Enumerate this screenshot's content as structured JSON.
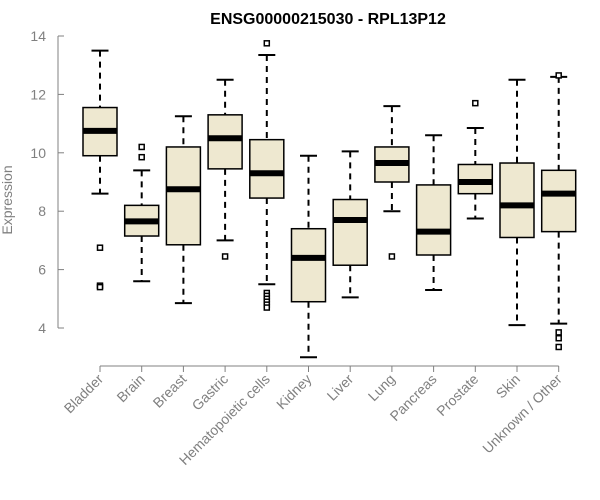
{
  "chart_data": {
    "type": "boxplot",
    "title": "ENSG00000215030 - RPL13P12",
    "xlabel": "",
    "ylabel": "Expression",
    "ylim": [
      3,
      14.2
    ],
    "yticks": [
      4,
      6,
      8,
      10,
      12,
      14
    ],
    "grid": false,
    "colors": {
      "box_fill": "#eee8d0",
      "stroke": "#000000",
      "axis": "#808080"
    },
    "categories": [
      "Bladder",
      "Brain",
      "Breast",
      "Gastric",
      "Hematopoietic cells",
      "Kidney",
      "Liver",
      "Lung",
      "Pancreas",
      "Prostate",
      "Skin",
      "Unknown / Other"
    ],
    "boxes": [
      {
        "category": "Bladder",
        "whisker_low": 8.6,
        "q1": 9.9,
        "median": 10.75,
        "q3": 11.55,
        "whisker_high": 13.5,
        "outliers": [
          6.75,
          5.45,
          5.4
        ]
      },
      {
        "category": "Brain",
        "whisker_low": 5.6,
        "q1": 7.15,
        "median": 7.65,
        "q3": 8.2,
        "whisker_high": 9.4,
        "outliers": [
          10.2,
          9.85
        ]
      },
      {
        "category": "Breast",
        "whisker_low": 4.85,
        "q1": 6.85,
        "median": 8.75,
        "q3": 10.2,
        "whisker_high": 11.25,
        "outliers": []
      },
      {
        "category": "Gastric",
        "whisker_low": 7.0,
        "q1": 9.45,
        "median": 10.5,
        "q3": 11.3,
        "whisker_high": 12.5,
        "outliers": [
          6.45
        ]
      },
      {
        "category": "Hematopoietic cells",
        "whisker_low": 5.5,
        "q1": 8.45,
        "median": 9.3,
        "q3": 10.45,
        "whisker_high": 13.35,
        "outliers": [
          13.75,
          5.2,
          5.1,
          5.0,
          4.9,
          4.8,
          4.7
        ]
      },
      {
        "category": "Kidney",
        "whisker_low": 3.0,
        "q1": 4.9,
        "median": 6.4,
        "q3": 7.4,
        "whisker_high": 9.9,
        "outliers": []
      },
      {
        "category": "Liver",
        "whisker_low": 5.05,
        "q1": 6.15,
        "median": 7.7,
        "q3": 8.4,
        "whisker_high": 10.05,
        "outliers": []
      },
      {
        "category": "Lung",
        "whisker_low": 8.0,
        "q1": 9.0,
        "median": 9.65,
        "q3": 10.2,
        "whisker_high": 11.6,
        "outliers": [
          6.45
        ]
      },
      {
        "category": "Pancreas",
        "whisker_low": 5.3,
        "q1": 6.5,
        "median": 7.3,
        "q3": 8.9,
        "whisker_high": 10.6,
        "outliers": []
      },
      {
        "category": "Prostate",
        "whisker_low": 7.75,
        "q1": 8.6,
        "median": 9.0,
        "q3": 9.6,
        "whisker_high": 10.85,
        "outliers": [
          11.7
        ]
      },
      {
        "category": "Skin",
        "whisker_low": 4.1,
        "q1": 7.1,
        "median": 8.2,
        "q3": 9.65,
        "whisker_high": 12.5,
        "outliers": []
      },
      {
        "category": "Unknown / Other",
        "whisker_low": 4.15,
        "q1": 7.3,
        "median": 8.6,
        "q3": 9.4,
        "whisker_high": 12.6,
        "outliers": [
          12.65,
          3.85,
          3.65,
          3.35
        ]
      }
    ]
  }
}
